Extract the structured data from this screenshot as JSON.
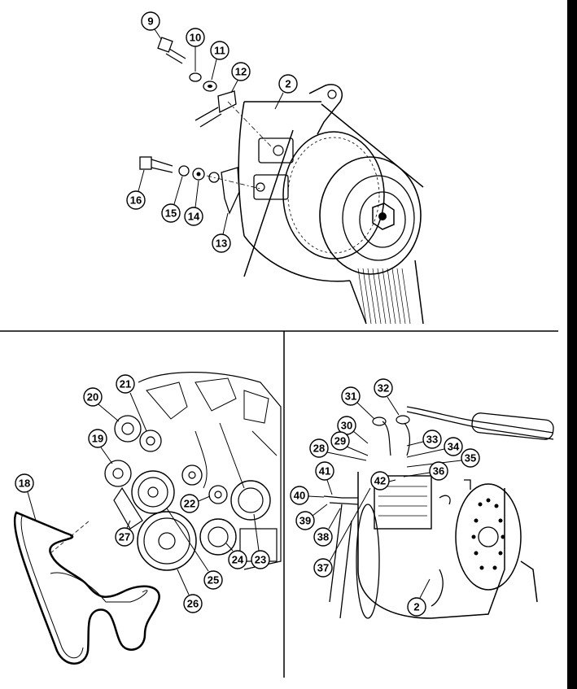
{
  "figure": {
    "panels": [
      {
        "name": "top-panel",
        "callouts": [
          "9",
          "10",
          "11",
          "12",
          "2",
          "16",
          "15",
          "14",
          "13"
        ]
      },
      {
        "name": "bottom-left-panel",
        "callouts": [
          "18",
          "19",
          "20",
          "21",
          "22",
          "23",
          "24",
          "25",
          "26",
          "27"
        ]
      },
      {
        "name": "bottom-right-panel",
        "callouts": [
          "28",
          "29",
          "30",
          "31",
          "32",
          "33",
          "34",
          "35",
          "36",
          "37",
          "38",
          "39",
          "40",
          "41",
          "42",
          "2"
        ]
      }
    ]
  },
  "callouts": {
    "c9": "9",
    "c10": "10",
    "c11": "11",
    "c12": "12",
    "c2a": "2",
    "c16": "16",
    "c15": "15",
    "c14": "14",
    "c13": "13",
    "c18": "18",
    "c19": "19",
    "c20": "20",
    "c21": "21",
    "c22": "22",
    "c23": "23",
    "c24": "24",
    "c25": "25",
    "c26": "26",
    "c27": "27",
    "c28": "28",
    "c29": "29",
    "c30": "30",
    "c31": "31",
    "c32": "32",
    "c33": "33",
    "c34": "34",
    "c35": "35",
    "c36": "36",
    "c37": "37",
    "c38": "38",
    "c39": "39",
    "c40": "40",
    "c41": "41",
    "c42": "42",
    "c2b": "2"
  },
  "colors": {
    "ink": "#000000",
    "paper": "#ffffff",
    "shade": "#e6e6e6"
  }
}
